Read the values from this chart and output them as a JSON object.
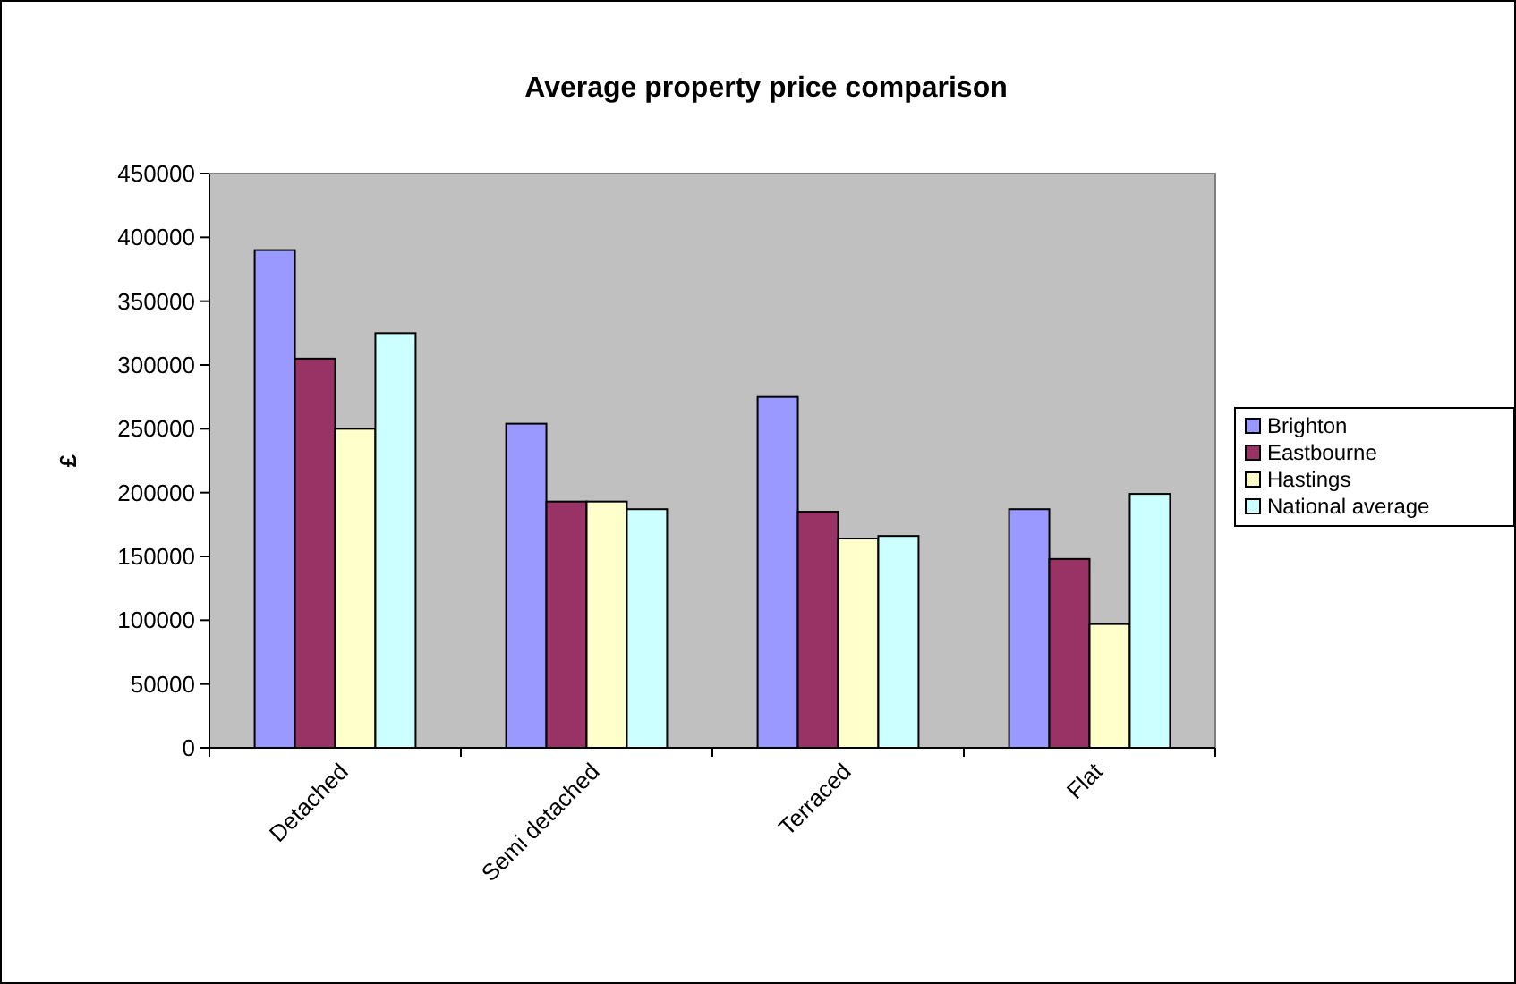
{
  "chart_data": {
    "type": "bar",
    "title": "Average property price comparison",
    "ylabel": "£",
    "categories": [
      "Detached",
      "Semi detached",
      "Terraced",
      "Flat"
    ],
    "series": [
      {
        "name": "Brighton",
        "color": "#9999ff",
        "values": [
          390000,
          254000,
          275000,
          187000
        ]
      },
      {
        "name": "Eastbourne",
        "color": "#993366",
        "values": [
          305000,
          193000,
          185000,
          148000
        ]
      },
      {
        "name": "Hastings",
        "color": "#ffffcc",
        "values": [
          250000,
          193000,
          164000,
          97000
        ]
      },
      {
        "name": "National average",
        "color": "#ccffff",
        "values": [
          325000,
          187000,
          166000,
          199000
        ]
      }
    ],
    "ylim": [
      0,
      450000
    ],
    "yticks": [
      0,
      50000,
      100000,
      150000,
      200000,
      250000,
      300000,
      350000,
      400000,
      450000
    ],
    "grid": false,
    "legend": "right"
  }
}
